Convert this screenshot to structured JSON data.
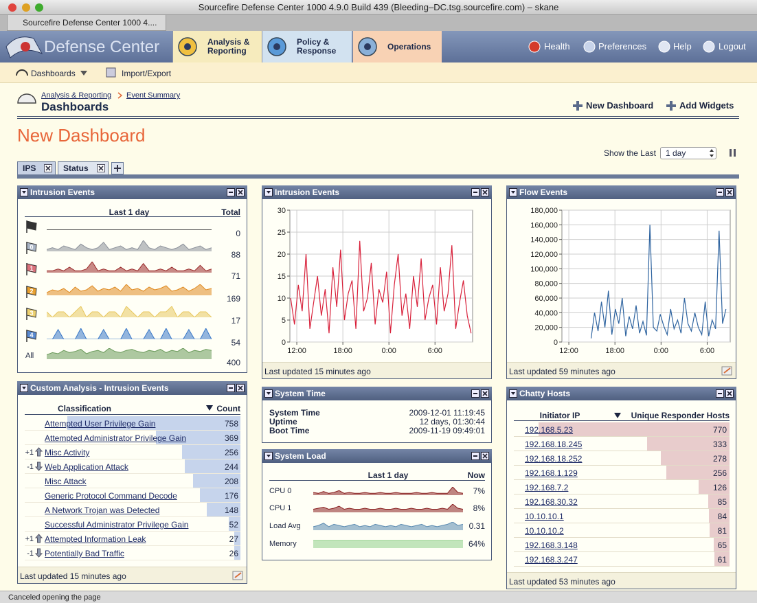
{
  "window": {
    "title": "Sourcefire Defense Center 1000 4.9.0 Build 439 (Bleeding–DC.tsg.sourcefire.com) – skane",
    "tab": "Sourcefire Defense Center 1000 4...."
  },
  "nav": {
    "logo": "Defense Center",
    "tabs": [
      "Analysis & Reporting",
      "Policy & Response",
      "Operations"
    ],
    "links": [
      "Health",
      "Preferences",
      "Help",
      "Logout"
    ]
  },
  "subnav": [
    "Dashboards",
    "Import/Export"
  ],
  "breadcrumb": [
    "Analysis & Reporting",
    "Event Summary"
  ],
  "heading": "Dashboards",
  "actions": [
    "New Dashboard",
    "Add Widgets"
  ],
  "dashboard": {
    "title": "New Dashboard",
    "range_label": "Show the Last",
    "range_value": "1 day",
    "tabs": [
      "IPS",
      "Status"
    ]
  },
  "widgets": {
    "intrusion_summary": {
      "title": "Intrusion Events",
      "period": "Last 1 day",
      "total_header": "Total",
      "rows": [
        {
          "label": null,
          "flag": "#333333",
          "color": "#555555",
          "total": 0,
          "spark": [
            0,
            0,
            0,
            0,
            0,
            0,
            0,
            0,
            0,
            0,
            0,
            0,
            0,
            0,
            0,
            0,
            0,
            0,
            0,
            0,
            0,
            0,
            0,
            0,
            0,
            0,
            0,
            0,
            0,
            0
          ]
        },
        {
          "label": "0",
          "flag": "#a9b4c4",
          "color": "#8a8f99",
          "total": 88,
          "spark": [
            1,
            2,
            1,
            3,
            2,
            1,
            4,
            2,
            1,
            2,
            5,
            1,
            2,
            3,
            1,
            2,
            1,
            6,
            2,
            1,
            3,
            2,
            1,
            2,
            4,
            1,
            2,
            3,
            1,
            2
          ]
        },
        {
          "label": "1",
          "flag": "#d9707a",
          "color": "#9a2a2a",
          "total": 71,
          "spark": [
            1,
            1,
            2,
            1,
            3,
            1,
            1,
            2,
            6,
            1,
            2,
            1,
            1,
            3,
            1,
            2,
            1,
            5,
            1,
            1,
            2,
            1,
            3,
            1,
            1,
            2,
            1,
            4,
            1,
            2
          ]
        },
        {
          "label": "2",
          "flag": "#e8a030",
          "color": "#e08a20",
          "total": 169,
          "spark": [
            2,
            4,
            3,
            5,
            2,
            6,
            3,
            4,
            7,
            3,
            5,
            4,
            6,
            3,
            8,
            4,
            5,
            3,
            6,
            4,
            5,
            7,
            3,
            4,
            6,
            3,
            5,
            8,
            4,
            5
          ]
        },
        {
          "label": "3",
          "flag": "#ecd070",
          "color": "#e8c860",
          "total": 17,
          "spark": [
            1,
            0,
            1,
            1,
            0,
            1,
            2,
            0,
            1,
            1,
            0,
            1,
            1,
            0,
            2,
            1,
            0,
            1,
            1,
            0,
            1,
            1,
            2,
            0,
            1,
            1,
            0,
            1,
            1,
            0
          ]
        },
        {
          "label": "4",
          "flag": "#5a8ad0",
          "color": "#3a78c8",
          "total": 54,
          "spark": [
            0,
            0,
            8,
            0,
            0,
            0,
            9,
            0,
            0,
            0,
            8,
            0,
            0,
            0,
            9,
            0,
            0,
            0,
            8,
            0,
            0,
            9,
            0,
            0,
            0,
            8,
            0,
            0,
            9,
            0
          ]
        },
        {
          "label": "All",
          "color": "#6a9a5a",
          "total": 400,
          "spark": [
            4,
            6,
            5,
            8,
            6,
            7,
            9,
            5,
            7,
            8,
            6,
            10,
            7,
            6,
            8,
            9,
            7,
            6,
            8,
            7,
            9,
            6,
            8,
            7,
            10,
            6,
            8,
            7,
            9,
            8
          ]
        }
      ]
    },
    "custom_analysis": {
      "title": "Custom Analysis - Intrusion Events",
      "columns": [
        "Classification",
        "Count"
      ],
      "footer": "Last updated 15 minutes ago",
      "rows": [
        {
          "name": "Attempted User Privilege Gain",
          "count": 758
        },
        {
          "name": "Attempted Administrator Privilege Gain",
          "count": 369
        },
        {
          "change": "+1",
          "trend": "up",
          "name": "Misc Activity",
          "count": 256
        },
        {
          "change": "-1",
          "trend": "down",
          "name": "Web Application Attack",
          "count": 244
        },
        {
          "name": "Misc Attack",
          "count": 208
        },
        {
          "name": "Generic Protocol Command Decode",
          "count": 176
        },
        {
          "name": "A Network Trojan was Detected",
          "count": 148
        },
        {
          "name": "Successful Administrator Privilege Gain",
          "count": 52
        },
        {
          "change": "+1",
          "trend": "up",
          "name": "Attempted Information Leak",
          "count": 27
        },
        {
          "change": "-1",
          "trend": "down",
          "name": "Potentially Bad Traffic",
          "count": 26
        }
      ]
    },
    "intrusion_chart": {
      "footer": "Last updated 15 minutes ago"
    },
    "flow_chart": {
      "footer": "Last updated 59 minutes ago"
    },
    "system_time": {
      "title": "System Time",
      "rows": [
        {
          "label": "System Time",
          "value": "2009-12-01 11:19:45"
        },
        {
          "label": "Uptime",
          "value": "12 days, 01:30:44"
        },
        {
          "label": "Boot Time",
          "value": "2009-11-19 09:49:01"
        }
      ]
    },
    "system_load": {
      "title": "System Load",
      "period": "Last 1 day",
      "now_header": "Now",
      "rows": [
        {
          "label": "CPU 0",
          "now": "7%",
          "color": "#8a2020",
          "spark": [
            3,
            2,
            4,
            2,
            3,
            5,
            2,
            3,
            2,
            2,
            3,
            2,
            2,
            3,
            2,
            2,
            3,
            2,
            2,
            2,
            3,
            2,
            2,
            3,
            2,
            2,
            2,
            9,
            3,
            2
          ]
        },
        {
          "label": "CPU 1",
          "now": "8%",
          "color": "#8a2020",
          "spark": [
            3,
            4,
            5,
            3,
            4,
            6,
            3,
            4,
            3,
            3,
            4,
            3,
            3,
            4,
            3,
            3,
            4,
            3,
            3,
            4,
            3,
            3,
            4,
            3,
            3,
            4,
            3,
            8,
            4,
            3
          ]
        },
        {
          "label": "Load Avg",
          "now": "0.31",
          "color": "#5a8ab0",
          "spark": [
            3,
            4,
            6,
            3,
            5,
            4,
            3,
            4,
            5,
            3,
            4,
            3,
            5,
            4,
            3,
            4,
            3,
            5,
            4,
            3,
            4,
            5,
            3,
            4,
            3,
            4,
            5,
            7,
            4,
            5
          ]
        },
        {
          "label": "Memory",
          "now": "64%",
          "color": "#8fcf8a",
          "spark": [
            64,
            64,
            64,
            64,
            64,
            64,
            64,
            64,
            64,
            64,
            64,
            64,
            64,
            64,
            64,
            64,
            64,
            64,
            64,
            64,
            64,
            64,
            64,
            64,
            64,
            64,
            64,
            64,
            64,
            64
          ]
        }
      ]
    },
    "chatty_hosts": {
      "title": "Chatty Hosts",
      "columns": [
        "Initiator IP",
        "Unique Responder Hosts"
      ],
      "footer": "Last updated 53 minutes ago",
      "rows": [
        {
          "ip": "192.168.5.23",
          "count": 770
        },
        {
          "ip": "192.168.18.245",
          "count": 333
        },
        {
          "ip": "192.168.18.252",
          "count": 278
        },
        {
          "ip": "192.168.1.129",
          "count": 256
        },
        {
          "ip": "192.168.7.2",
          "count": 126
        },
        {
          "ip": "192.168.30.32",
          "count": 85
        },
        {
          "ip": "10.10.10.1",
          "count": 84
        },
        {
          "ip": "10.10.10.2",
          "count": 81
        },
        {
          "ip": "192.168.3.148",
          "count": 65
        },
        {
          "ip": "192.168.3.247",
          "count": 61
        }
      ]
    }
  },
  "chart_data": [
    {
      "type": "line",
      "title": "Intrusion Events",
      "color": "#d8203a",
      "grid": true,
      "x": [
        11.2,
        11.7,
        12.2,
        12.7,
        13.2,
        13.7,
        14.2,
        14.7,
        15.2,
        15.7,
        16.2,
        16.7,
        17.2,
        17.7,
        18.2,
        18.7,
        19.2,
        19.7,
        20.2,
        20.7,
        21.2,
        21.7,
        22.2,
        22.7,
        23.2,
        23.7,
        24.2,
        24.7,
        25.2,
        25.7,
        26.2,
        26.7,
        27.2,
        27.7,
        28.2,
        28.7,
        29.2,
        29.7,
        30.2,
        30.7,
        31.2,
        31.7,
        32.2,
        32.7,
        33.2,
        33.7,
        34.2,
        34.7
      ],
      "values": [
        10,
        4,
        13,
        7,
        20,
        3,
        9,
        15,
        6,
        12,
        2,
        17,
        8,
        21,
        5,
        11,
        14,
        3,
        23,
        7,
        10,
        18,
        4,
        12,
        9,
        16,
        2,
        13,
        20,
        6,
        11,
        3,
        15,
        8,
        19,
        5,
        10,
        13,
        4,
        17,
        7,
        11,
        22,
        3,
        9,
        14,
        6,
        2
      ],
      "xlim": [
        11.1,
        34.9
      ],
      "xticks": [
        {
          "value": 12,
          "label": "12:00"
        },
        {
          "value": 18,
          "label": "18:00"
        },
        {
          "value": 24,
          "label": "0:00"
        },
        {
          "value": 30,
          "label": "6:00"
        }
      ],
      "ylim": [
        0,
        30
      ],
      "yticks": [
        0,
        5,
        10,
        15,
        20,
        25,
        30
      ]
    },
    {
      "type": "line",
      "title": "Flow Events",
      "color": "#2f64a0",
      "grid": true,
      "x": [
        14.9,
        15.35,
        15.8,
        16.25,
        16.7,
        17.15,
        17.6,
        18.05,
        18.5,
        18.95,
        19.4,
        19.85,
        20.3,
        20.75,
        21.2,
        21.65,
        22.1,
        22.55,
        23,
        23.45,
        23.9,
        24.35,
        24.8,
        25.25,
        25.7,
        26.15,
        26.6,
        27.05,
        27.5,
        27.95,
        28.4,
        28.85,
        29.3,
        29.75,
        30.2,
        30.65,
        31.1,
        31.55,
        32,
        32.45
      ],
      "values": [
        5000,
        40000,
        15000,
        55000,
        20000,
        70000,
        10000,
        45000,
        25000,
        60000,
        8000,
        35000,
        18000,
        50000,
        12000,
        28000,
        9000,
        160000,
        20000,
        15000,
        38000,
        22000,
        10000,
        45000,
        18000,
        30000,
        12000,
        60000,
        25000,
        15000,
        40000,
        20000,
        10000,
        55000,
        8000,
        30000,
        18000,
        152000,
        25000,
        45000
      ],
      "xlim": [
        11.1,
        33.0
      ],
      "xticks": [
        {
          "value": 12,
          "label": "12:00"
        },
        {
          "value": 18,
          "label": "18:00"
        },
        {
          "value": 24,
          "label": "0:00"
        },
        {
          "value": 30,
          "label": "6:00"
        }
      ],
      "ylim": [
        0,
        180000
      ],
      "yticks": [
        0,
        {
          "value": 20000,
          "label": "20,000"
        },
        {
          "value": 40000,
          "label": "40,000"
        },
        {
          "value": 60000,
          "label": "60,000"
        },
        {
          "value": 80000,
          "label": "80,000"
        },
        {
          "value": 100000,
          "label": "100,000"
        },
        {
          "value": 120000,
          "label": "120,000"
        },
        {
          "value": 140000,
          "label": "140,000"
        },
        {
          "value": 160000,
          "label": "160,000"
        },
        {
          "value": 180000,
          "label": "180,000"
        }
      ]
    }
  ],
  "status": "Canceled opening the page"
}
